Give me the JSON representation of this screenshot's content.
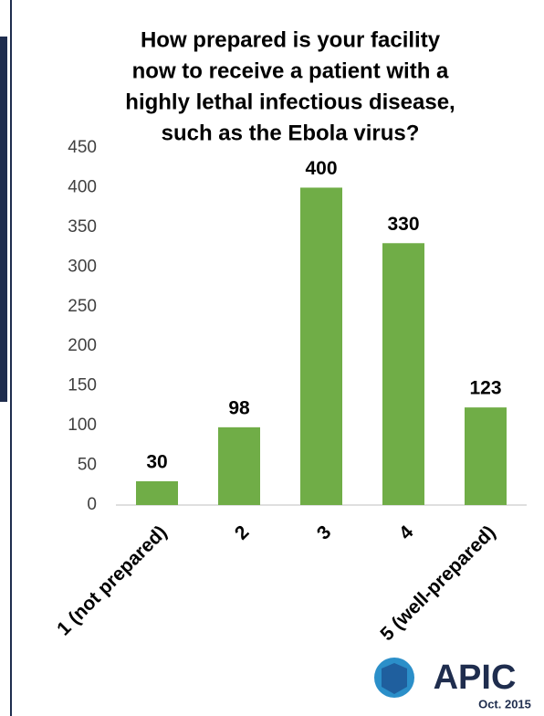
{
  "chart_data": {
    "type": "bar",
    "title": [
      "How prepared is your facility",
      "now to receive a patient with a",
      "highly lethal infectious disease,",
      "such as the Ebola virus?"
    ],
    "categories": [
      "1 (not prepared)",
      "2",
      "3",
      "4",
      "5 (well-prepared)"
    ],
    "values": [
      30,
      98,
      400,
      330,
      123
    ],
    "color": "#70ad47",
    "ylim": [
      0,
      450
    ],
    "yticks": [
      0,
      50,
      100,
      150,
      200,
      250,
      300,
      350,
      400,
      450
    ],
    "grid": false,
    "logo": {
      "text": "APIC",
      "date": "Oct. 2015"
    }
  }
}
